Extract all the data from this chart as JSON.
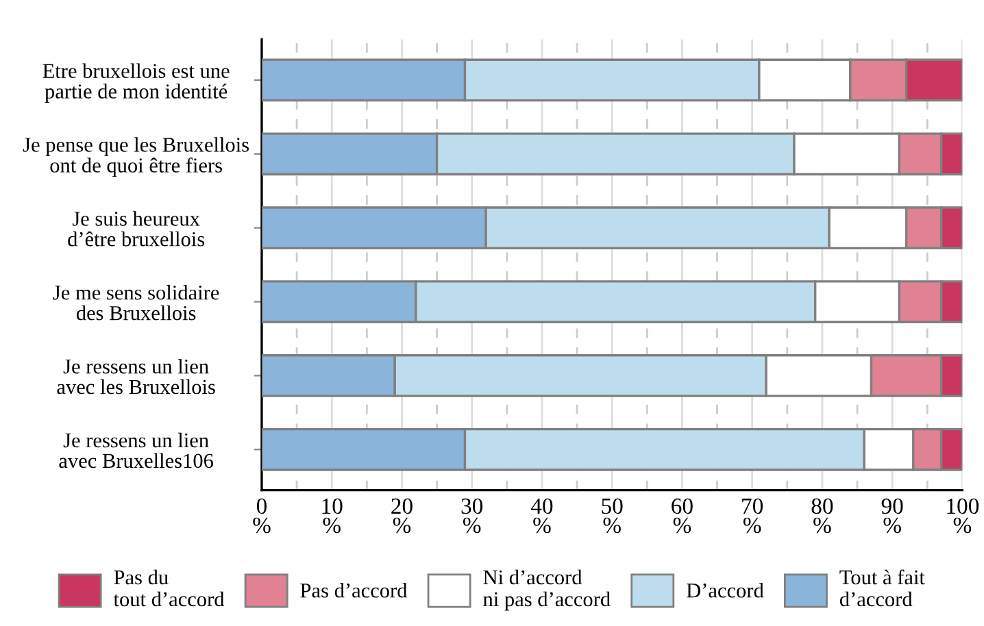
{
  "chart_data": {
    "type": "bar",
    "orientation": "horizontal",
    "stacked": true,
    "categories": [
      "Etre bruxellois est une\npartie de mon identité",
      "Je pense que les Bruxellois\nont de quoi être fiers",
      "Je suis heureux\nd’être bruxellois",
      "Je me sens solidaire\ndes Bruxellois",
      "Je ressens un lien\navec les Bruxellois",
      "Je ressens un lien\navec Bruxelles106"
    ],
    "series": [
      {
        "name": "Tout à fait\nd’accord",
        "color": "#8ab4da",
        "values": [
          29,
          25,
          32,
          22,
          19,
          29
        ]
      },
      {
        "name": "D’accord",
        "color": "#bddcee",
        "values": [
          42,
          51,
          49,
          57,
          53,
          57
        ]
      },
      {
        "name": "Ni d’accord\nni pas d’accord",
        "color": "#ffffff",
        "values": [
          13,
          15,
          11,
          12,
          15,
          7
        ]
      },
      {
        "name": "Pas d’accord",
        "color": "#e08294",
        "values": [
          8,
          6,
          5,
          6,
          10,
          4
        ]
      },
      {
        "name": "Pas du\ntout d’accord",
        "color": "#c9365f",
        "values": [
          8,
          3,
          3,
          3,
          3,
          3
        ]
      }
    ],
    "xlim": [
      0,
      100
    ],
    "xticks": [
      {
        "value": 0,
        "label": "0\n%"
      },
      {
        "value": 5,
        "label": null
      },
      {
        "value": 10,
        "label": "10\n%"
      },
      {
        "value": 15,
        "label": null
      },
      {
        "value": 20,
        "label": "20\n%"
      },
      {
        "value": 25,
        "label": null
      },
      {
        "value": 30,
        "label": "30\n%"
      },
      {
        "value": 35,
        "label": null
      },
      {
        "value": 40,
        "label": "40\n%"
      },
      {
        "value": 45,
        "label": null
      },
      {
        "value": 50,
        "label": "50\n%"
      },
      {
        "value": 55,
        "label": null
      },
      {
        "value": 60,
        "label": "60\n%"
      },
      {
        "value": 65,
        "label": null
      },
      {
        "value": 70,
        "label": "70\n%"
      },
      {
        "value": 75,
        "label": null
      },
      {
        "value": 80,
        "label": "80\n%"
      },
      {
        "value": 85,
        "label": null
      },
      {
        "value": 90,
        "label": "90\n%"
      },
      {
        "value": 95,
        "label": null
      },
      {
        "value": 100,
        "label": "100\n%"
      }
    ],
    "grid": "x",
    "legend": "bottom"
  }
}
